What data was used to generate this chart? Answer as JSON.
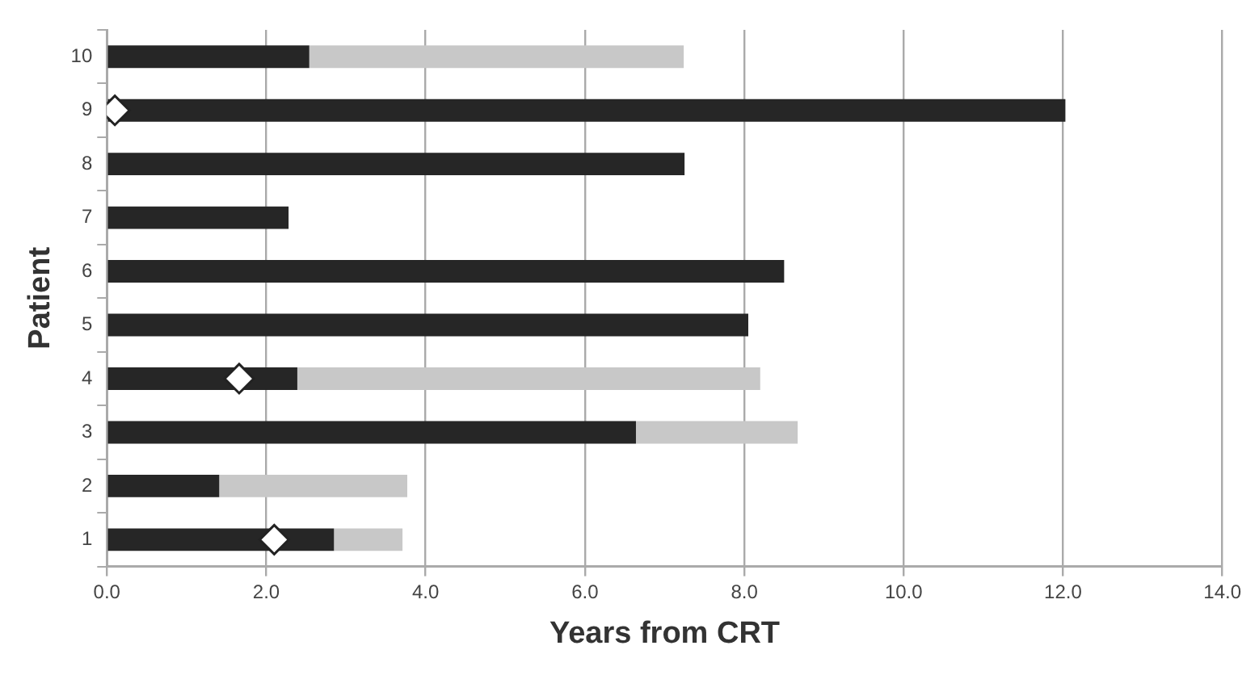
{
  "chart_data": {
    "type": "bar",
    "orientation": "horizontal",
    "stacked": true,
    "xlabel": "Years from CRT",
    "ylabel": "Patient",
    "categories": [
      "10",
      "9",
      "8",
      "7",
      "6",
      "5",
      "4",
      "3",
      "2",
      "1"
    ],
    "series": [
      {
        "color": "#262626",
        "values": [
          2.54,
          12.03,
          7.25,
          2.28,
          8.5,
          8.05,
          2.39,
          6.64,
          1.41,
          2.85
        ]
      },
      {
        "color": "#c8c8c8",
        "values": [
          4.7,
          null,
          null,
          null,
          null,
          null,
          5.81,
          2.03,
          2.36,
          0.86
        ]
      },
      {
        "type": "scatter",
        "color": "#ffffff",
        "marker": "diamond",
        "x": [
          "9",
          "4",
          "1"
        ],
        "values": [
          0.1,
          1.66,
          2.1
        ]
      }
    ],
    "xlim": [
      0,
      14
    ],
    "xticks": [
      {
        "value": 0,
        "label": "0.0"
      },
      {
        "value": 2,
        "label": "2.0"
      },
      {
        "value": 4,
        "label": "4.0"
      },
      {
        "value": 6,
        "label": "6.0"
      },
      {
        "value": 8,
        "label": "8.0"
      },
      {
        "value": 10,
        "label": "10.0"
      },
      {
        "value": 12,
        "label": "12.0"
      },
      {
        "value": 14,
        "label": "14.0"
      }
    ],
    "grid": "x",
    "legend": false
  }
}
